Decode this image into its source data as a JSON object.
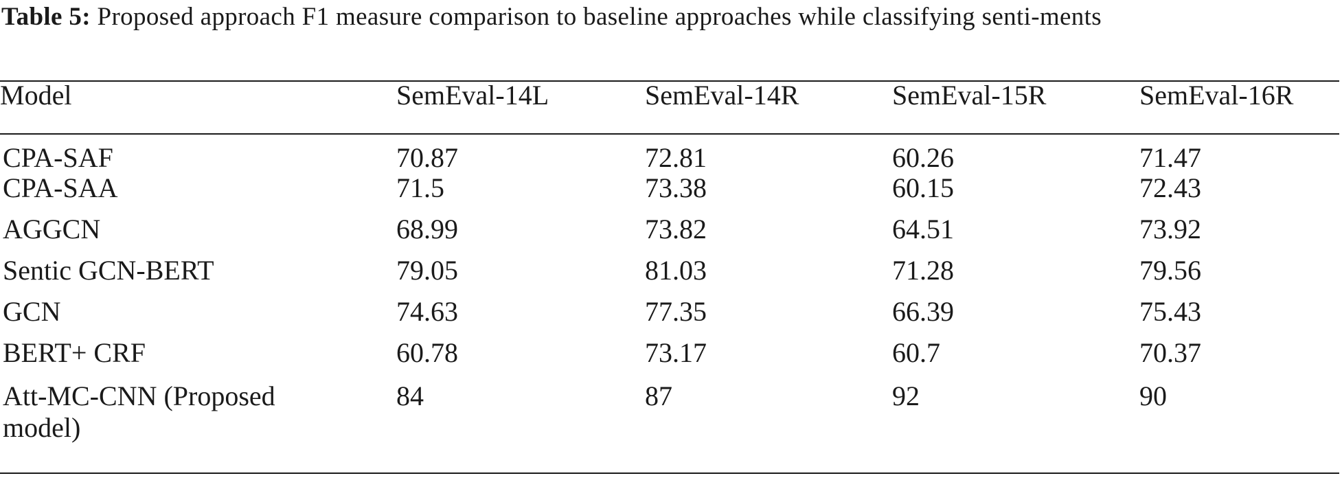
{
  "caption": {
    "label": "Table 5:",
    "text": "Proposed approach F1 measure comparison to baseline approaches while classifying senti-ments"
  },
  "table": {
    "headers": [
      "Model",
      "SemEval-14L",
      "SemEval-14R",
      "SemEval-15R",
      "SemEval-16R"
    ],
    "rows": [
      {
        "model": "CPA-SAF",
        "values": [
          "70.87",
          "72.81",
          "60.26",
          "71.47"
        ]
      },
      {
        "model": "CPA-SAA",
        "values": [
          "71.5",
          "73.38",
          "60.15",
          "72.43"
        ]
      },
      {
        "model": "AGGCN",
        "values": [
          "68.99",
          "73.82",
          "64.51",
          "73.92"
        ]
      },
      {
        "model": "Sentic GCN-BERT",
        "values": [
          "79.05",
          "81.03",
          "71.28",
          "79.56"
        ]
      },
      {
        "model": "GCN",
        "values": [
          "74.63",
          "77.35",
          "66.39",
          "75.43"
        ]
      },
      {
        "model": "BERT+ CRF",
        "values": [
          "60.78",
          "73.17",
          "60.7",
          "70.37"
        ]
      },
      {
        "model": "Att-MC-CNN (Proposed model)",
        "values": [
          "84",
          "87",
          "92",
          "90"
        ],
        "bold_index": 2
      }
    ]
  }
}
